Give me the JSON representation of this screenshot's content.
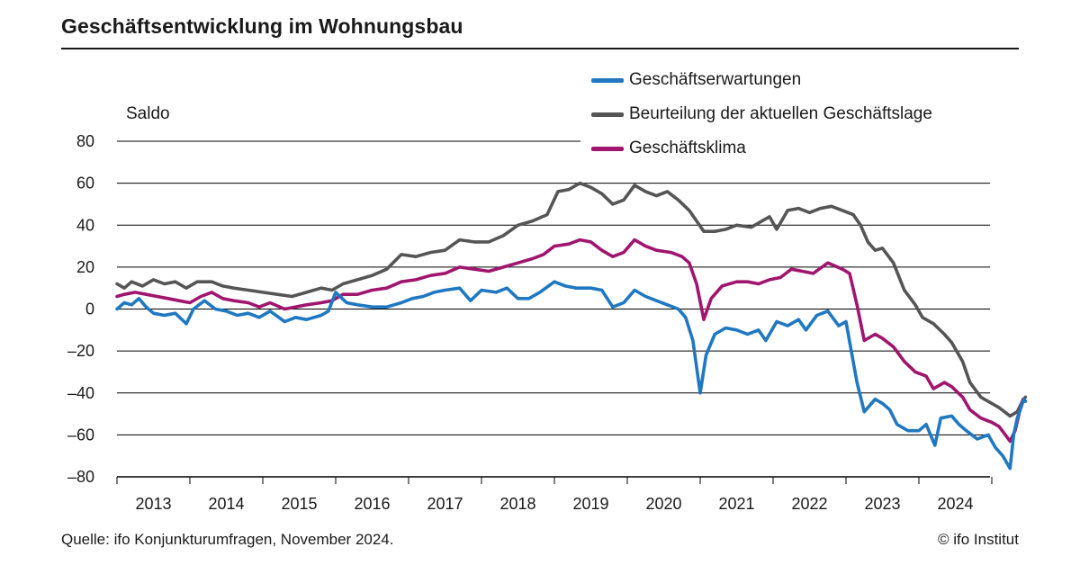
{
  "header": {
    "title": "Geschäftsentwicklung im Wohnungsbau"
  },
  "footer": {
    "source": "Quelle: ifo Konjunkturumfragen, November 2024.",
    "copyright": "© ifo Institut"
  },
  "chart_data": {
    "type": "line",
    "ylabel": "Saldo",
    "ylim": [
      -80,
      80
    ],
    "yticks": [
      80,
      60,
      40,
      20,
      0,
      -20,
      -40,
      -60,
      -80
    ],
    "xlim": [
      2012.5,
      2024.96
    ],
    "xticks": [
      "2013",
      "2014",
      "2015",
      "2016",
      "2017",
      "2018",
      "2019",
      "2020",
      "2021",
      "2022",
      "2023",
      "2024"
    ],
    "grid": true,
    "legend_position": "top-right",
    "series": [
      {
        "name": "Geschäftserwartungen",
        "color": "#1f78c1",
        "points": [
          [
            2012.5,
            0
          ],
          [
            2012.6,
            3
          ],
          [
            2012.7,
            2
          ],
          [
            2012.8,
            5
          ],
          [
            2012.9,
            1
          ],
          [
            2013.0,
            -2
          ],
          [
            2013.15,
            -3
          ],
          [
            2013.3,
            -2
          ],
          [
            2013.45,
            -7
          ],
          [
            2013.55,
            0
          ],
          [
            2013.7,
            4
          ],
          [
            2013.85,
            0
          ],
          [
            2014.0,
            -1
          ],
          [
            2014.15,
            -3
          ],
          [
            2014.3,
            -2
          ],
          [
            2014.45,
            -4
          ],
          [
            2014.6,
            -1
          ],
          [
            2014.8,
            -6
          ],
          [
            2014.95,
            -4
          ],
          [
            2015.1,
            -5
          ],
          [
            2015.3,
            -3
          ],
          [
            2015.4,
            -1
          ],
          [
            2015.5,
            8
          ],
          [
            2015.65,
            3
          ],
          [
            2015.8,
            2
          ],
          [
            2016.0,
            1
          ],
          [
            2016.2,
            1
          ],
          [
            2016.4,
            3
          ],
          [
            2016.55,
            5
          ],
          [
            2016.7,
            6
          ],
          [
            2016.85,
            8
          ],
          [
            2017.0,
            9
          ],
          [
            2017.2,
            10
          ],
          [
            2017.35,
            4
          ],
          [
            2017.5,
            9
          ],
          [
            2017.7,
            8
          ],
          [
            2017.85,
            10
          ],
          [
            2018.0,
            5
          ],
          [
            2018.15,
            5
          ],
          [
            2018.3,
            8
          ],
          [
            2018.5,
            13
          ],
          [
            2018.65,
            11
          ],
          [
            2018.8,
            10
          ],
          [
            2019.0,
            10
          ],
          [
            2019.15,
            9
          ],
          [
            2019.3,
            1
          ],
          [
            2019.45,
            3
          ],
          [
            2019.6,
            9
          ],
          [
            2019.75,
            6
          ],
          [
            2019.9,
            4
          ],
          [
            2020.05,
            2
          ],
          [
            2020.2,
            0
          ],
          [
            2020.3,
            -4
          ],
          [
            2020.4,
            -15
          ],
          [
            2020.5,
            -40
          ],
          [
            2020.58,
            -22
          ],
          [
            2020.7,
            -12
          ],
          [
            2020.85,
            -9
          ],
          [
            2021.0,
            -10
          ],
          [
            2021.15,
            -12
          ],
          [
            2021.3,
            -10
          ],
          [
            2021.4,
            -15
          ],
          [
            2021.55,
            -6
          ],
          [
            2021.7,
            -8
          ],
          [
            2021.85,
            -5
          ],
          [
            2021.95,
            -10
          ],
          [
            2022.1,
            -3
          ],
          [
            2022.25,
            -1
          ],
          [
            2022.4,
            -8
          ],
          [
            2022.5,
            -6
          ],
          [
            2022.65,
            -35
          ],
          [
            2022.75,
            -49
          ],
          [
            2022.9,
            -43
          ],
          [
            2023.0,
            -45
          ],
          [
            2023.1,
            -48
          ],
          [
            2023.2,
            -55
          ],
          [
            2023.35,
            -58
          ],
          [
            2023.5,
            -58
          ],
          [
            2023.6,
            -55
          ],
          [
            2023.72,
            -65
          ],
          [
            2023.8,
            -52
          ],
          [
            2023.95,
            -51
          ],
          [
            2024.05,
            -55
          ],
          [
            2024.15,
            -58
          ],
          [
            2024.3,
            -62
          ],
          [
            2024.45,
            -60
          ],
          [
            2024.55,
            -66
          ],
          [
            2024.65,
            -70
          ],
          [
            2024.75,
            -76
          ],
          [
            2024.8,
            -60
          ],
          [
            2024.85,
            -52
          ],
          [
            2024.9,
            -47
          ],
          [
            2024.94,
            -43
          ],
          [
            2024.96,
            -44
          ]
        ]
      },
      {
        "name": "Beurteilung der aktuellen Geschäftslage",
        "color": "#555555",
        "points": [
          [
            2012.5,
            12
          ],
          [
            2012.6,
            10
          ],
          [
            2012.7,
            13
          ],
          [
            2012.85,
            11
          ],
          [
            2013.0,
            14
          ],
          [
            2013.15,
            12
          ],
          [
            2013.3,
            13
          ],
          [
            2013.45,
            10
          ],
          [
            2013.6,
            13
          ],
          [
            2013.8,
            13
          ],
          [
            2013.95,
            11
          ],
          [
            2014.1,
            10
          ],
          [
            2014.3,
            9
          ],
          [
            2014.5,
            8
          ],
          [
            2014.7,
            7
          ],
          [
            2014.9,
            6
          ],
          [
            2015.1,
            8
          ],
          [
            2015.3,
            10
          ],
          [
            2015.45,
            9
          ],
          [
            2015.6,
            12
          ],
          [
            2015.8,
            14
          ],
          [
            2016.0,
            16
          ],
          [
            2016.2,
            19
          ],
          [
            2016.4,
            26
          ],
          [
            2016.6,
            25
          ],
          [
            2016.8,
            27
          ],
          [
            2017.0,
            28
          ],
          [
            2017.2,
            33
          ],
          [
            2017.4,
            32
          ],
          [
            2017.6,
            32
          ],
          [
            2017.8,
            35
          ],
          [
            2018.0,
            40
          ],
          [
            2018.2,
            42
          ],
          [
            2018.4,
            45
          ],
          [
            2018.55,
            56
          ],
          [
            2018.7,
            57
          ],
          [
            2018.85,
            60
          ],
          [
            2019.0,
            58
          ],
          [
            2019.15,
            55
          ],
          [
            2019.3,
            50
          ],
          [
            2019.45,
            52
          ],
          [
            2019.6,
            59
          ],
          [
            2019.75,
            56
          ],
          [
            2019.9,
            54
          ],
          [
            2020.05,
            56
          ],
          [
            2020.2,
            52
          ],
          [
            2020.35,
            47
          ],
          [
            2020.45,
            42
          ],
          [
            2020.55,
            37
          ],
          [
            2020.7,
            37
          ],
          [
            2020.85,
            38
          ],
          [
            2021.0,
            40
          ],
          [
            2021.2,
            39
          ],
          [
            2021.35,
            42
          ],
          [
            2021.45,
            44
          ],
          [
            2021.55,
            38
          ],
          [
            2021.7,
            47
          ],
          [
            2021.85,
            48
          ],
          [
            2022.0,
            46
          ],
          [
            2022.15,
            48
          ],
          [
            2022.3,
            49
          ],
          [
            2022.45,
            47
          ],
          [
            2022.6,
            45
          ],
          [
            2022.7,
            40
          ],
          [
            2022.8,
            32
          ],
          [
            2022.9,
            28
          ],
          [
            2023.0,
            29
          ],
          [
            2023.15,
            22
          ],
          [
            2023.3,
            9
          ],
          [
            2023.45,
            2
          ],
          [
            2023.55,
            -4
          ],
          [
            2023.7,
            -7
          ],
          [
            2023.85,
            -12
          ],
          [
            2023.95,
            -16
          ],
          [
            2024.1,
            -25
          ],
          [
            2024.2,
            -35
          ],
          [
            2024.35,
            -42
          ],
          [
            2024.5,
            -45
          ],
          [
            2024.6,
            -47
          ],
          [
            2024.75,
            -51
          ],
          [
            2024.85,
            -49
          ],
          [
            2024.92,
            -44
          ],
          [
            2024.96,
            -42
          ]
        ]
      },
      {
        "name": "Geschäftsklima",
        "color": "#a0156e",
        "points": [
          [
            2012.5,
            6
          ],
          [
            2012.6,
            7
          ],
          [
            2012.75,
            8
          ],
          [
            2012.9,
            7
          ],
          [
            2013.05,
            6
          ],
          [
            2013.2,
            5
          ],
          [
            2013.35,
            4
          ],
          [
            2013.5,
            3
          ],
          [
            2013.65,
            6
          ],
          [
            2013.8,
            8
          ],
          [
            2013.95,
            5
          ],
          [
            2014.1,
            4
          ],
          [
            2014.3,
            3
          ],
          [
            2014.45,
            1
          ],
          [
            2014.6,
            3
          ],
          [
            2014.8,
            0
          ],
          [
            2014.95,
            1
          ],
          [
            2015.1,
            2
          ],
          [
            2015.3,
            3
          ],
          [
            2015.45,
            4
          ],
          [
            2015.6,
            7
          ],
          [
            2015.8,
            7
          ],
          [
            2016.0,
            9
          ],
          [
            2016.2,
            10
          ],
          [
            2016.4,
            13
          ],
          [
            2016.6,
            14
          ],
          [
            2016.8,
            16
          ],
          [
            2017.0,
            17
          ],
          [
            2017.2,
            20
          ],
          [
            2017.4,
            19
          ],
          [
            2017.6,
            18
          ],
          [
            2017.8,
            20
          ],
          [
            2018.0,
            22
          ],
          [
            2018.2,
            24
          ],
          [
            2018.35,
            26
          ],
          [
            2018.5,
            30
          ],
          [
            2018.7,
            31
          ],
          [
            2018.85,
            33
          ],
          [
            2019.0,
            32
          ],
          [
            2019.15,
            28
          ],
          [
            2019.3,
            25
          ],
          [
            2019.45,
            27
          ],
          [
            2019.6,
            33
          ],
          [
            2019.75,
            30
          ],
          [
            2019.9,
            28
          ],
          [
            2020.1,
            27
          ],
          [
            2020.25,
            25
          ],
          [
            2020.35,
            22
          ],
          [
            2020.45,
            12
          ],
          [
            2020.55,
            -5
          ],
          [
            2020.65,
            5
          ],
          [
            2020.8,
            11
          ],
          [
            2021.0,
            13
          ],
          [
            2021.15,
            13
          ],
          [
            2021.3,
            12
          ],
          [
            2021.45,
            14
          ],
          [
            2021.6,
            15
          ],
          [
            2021.75,
            19
          ],
          [
            2021.9,
            18
          ],
          [
            2022.05,
            17
          ],
          [
            2022.25,
            22
          ],
          [
            2022.45,
            19
          ],
          [
            2022.55,
            17
          ],
          [
            2022.65,
            2
          ],
          [
            2022.75,
            -15
          ],
          [
            2022.9,
            -12
          ],
          [
            2023.0,
            -14
          ],
          [
            2023.15,
            -18
          ],
          [
            2023.3,
            -25
          ],
          [
            2023.45,
            -30
          ],
          [
            2023.6,
            -32
          ],
          [
            2023.7,
            -38
          ],
          [
            2023.85,
            -35
          ],
          [
            2023.95,
            -37
          ],
          [
            2024.1,
            -42
          ],
          [
            2024.2,
            -48
          ],
          [
            2024.35,
            -52
          ],
          [
            2024.5,
            -54
          ],
          [
            2024.6,
            -56
          ],
          [
            2024.75,
            -63
          ],
          [
            2024.82,
            -58
          ],
          [
            2024.88,
            -49
          ],
          [
            2024.93,
            -43
          ],
          [
            2024.96,
            -44
          ]
        ]
      }
    ]
  }
}
